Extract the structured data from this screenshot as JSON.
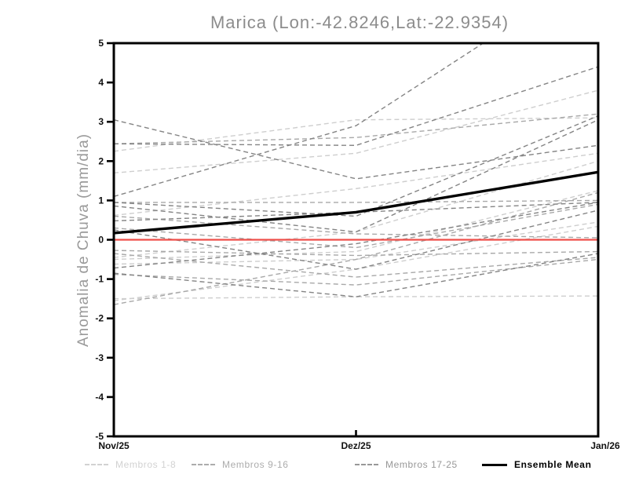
{
  "title": "Marica (Lon:-42.8246,Lat:-22.9354)",
  "chart_data": {
    "type": "line",
    "title": "Marica (Lon:-42.8246,Lat:-22.9354)",
    "ylabel": "Anomalia de Chuva (mm/dia)",
    "xlabel": "",
    "x_categories": [
      "Nov/25",
      "Dez/25",
      "Jan/26"
    ],
    "ylim": [
      -5,
      5
    ],
    "yticks": [
      -5,
      -4,
      -3,
      -2,
      -1,
      0,
      1,
      2,
      3,
      4,
      5
    ],
    "grid": false,
    "title_color": "#8c8c8c",
    "ylabel_color": "#9a9a9a",
    "axis_color": "#000000",
    "zero_line": {
      "value": 0,
      "color": "#ef4f4a"
    },
    "groups": [
      {
        "name": "Membros 1-8",
        "color": "#cecece",
        "style": "dashed"
      },
      {
        "name": "Membros 9-16",
        "color": "#a8a8a8",
        "style": "dashed"
      },
      {
        "name": "Membros 17-25",
        "color": "#848484",
        "style": "dashed"
      }
    ],
    "members": [
      {
        "group": 0,
        "values": [
          2.25,
          3.05,
          3.1
        ]
      },
      {
        "group": 0,
        "values": [
          1.7,
          2.2,
          3.8
        ]
      },
      {
        "group": 0,
        "values": [
          0.62,
          1.3,
          2.2
        ]
      },
      {
        "group": 0,
        "values": [
          -0.45,
          0.2,
          2.0
        ]
      },
      {
        "group": 0,
        "values": [
          -0.5,
          -0.3,
          1.25
        ]
      },
      {
        "group": 0,
        "values": [
          -0.62,
          -0.5,
          0.45
        ]
      },
      {
        "group": 0,
        "values": [
          -1.5,
          -1.45,
          -1.43
        ]
      },
      {
        "group": 0,
        "values": [
          -1.55,
          -0.75,
          0.34
        ]
      },
      {
        "group": 1,
        "values": [
          2.44,
          2.6,
          3.2
        ]
      },
      {
        "group": 1,
        "values": [
          0.95,
          0.95,
          1.0
        ]
      },
      {
        "group": 1,
        "values": [
          0.6,
          0.15,
          0.05
        ]
      },
      {
        "group": 1,
        "values": [
          0.3,
          -0.2,
          0.9
        ]
      },
      {
        "group": 1,
        "values": [
          -0.27,
          -0.4,
          -0.3
        ]
      },
      {
        "group": 1,
        "values": [
          -0.35,
          -0.95,
          -0.45
        ]
      },
      {
        "group": 1,
        "values": [
          -0.88,
          -1.15,
          -0.5
        ]
      },
      {
        "group": 1,
        "values": [
          -1.65,
          -0.5,
          1.2
        ]
      },
      {
        "group": 2,
        "values": [
          3.05,
          1.55,
          2.4
        ]
      },
      {
        "group": 2,
        "values": [
          1.1,
          2.9,
          6.9
        ]
      },
      {
        "group": 2,
        "values": [
          2.44,
          2.4,
          4.4
        ]
      },
      {
        "group": 2,
        "values": [
          0.95,
          0.6,
          3.15
        ]
      },
      {
        "group": 2,
        "values": [
          0.86,
          0.2,
          3.05
        ]
      },
      {
        "group": 2,
        "values": [
          0.48,
          0.7,
          0.95
        ]
      },
      {
        "group": 2,
        "values": [
          0.25,
          -0.75,
          0.75
        ]
      },
      {
        "group": 2,
        "values": [
          -0.72,
          -0.1,
          0.95
        ]
      },
      {
        "group": 2,
        "values": [
          -0.85,
          -1.45,
          -0.35
        ]
      }
    ],
    "ensemble_mean": {
      "name": "Ensemble Mean",
      "color": "#000000",
      "values": [
        0.17,
        0.7,
        1.72
      ]
    },
    "legend_position": "bottom"
  },
  "legend": [
    {
      "label": "Membros 1-8",
      "color": "#d2d2d2",
      "line": "dashed"
    },
    {
      "label": "Membros 9-16",
      "color": "#acacac",
      "line": "dashed"
    },
    {
      "label": "Membros 17-25",
      "color": "#989898",
      "line": "dashed"
    },
    {
      "label": "Ensemble Mean",
      "color": "#000000",
      "line": "solid"
    }
  ]
}
